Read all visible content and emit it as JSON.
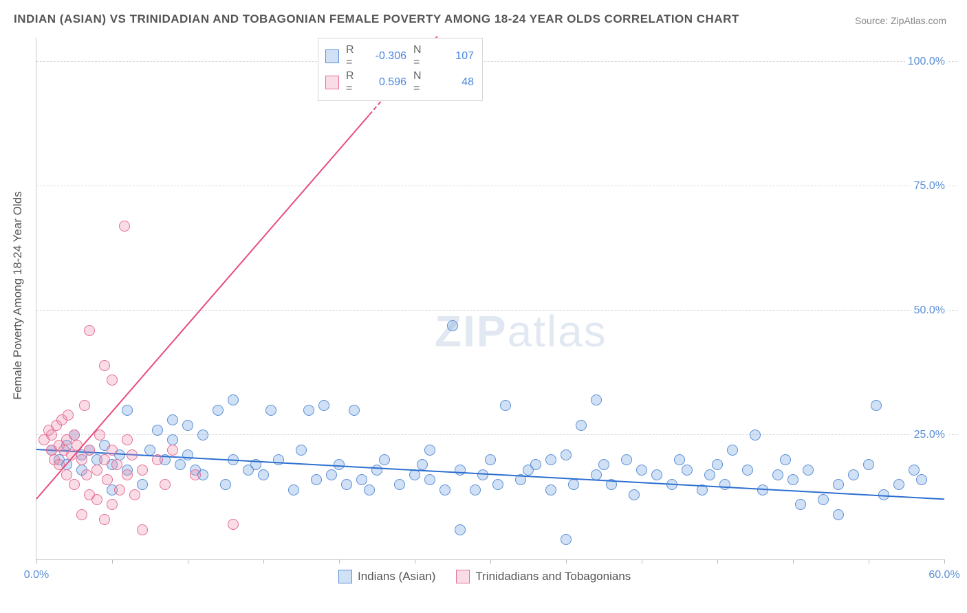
{
  "title": "INDIAN (ASIAN) VS TRINIDADIAN AND TOBAGONIAN FEMALE POVERTY AMONG 18-24 YEAR OLDS CORRELATION CHART",
  "source": "Source: ZipAtlas.com",
  "ylabel": "Female Poverty Among 18-24 Year Olds",
  "watermark_zip": "ZIP",
  "watermark_atlas": "atlas",
  "chart": {
    "type": "scatter",
    "xlim": [
      0,
      60
    ],
    "ylim": [
      0,
      105
    ],
    "xtick_positions": [
      0,
      5,
      10,
      15,
      20,
      25,
      30,
      35,
      40,
      45,
      50,
      55,
      60
    ],
    "xtick_labels": {
      "0": "0.0%",
      "60": "60.0%"
    },
    "ytick_positions": [
      25,
      50,
      75,
      100
    ],
    "ytick_labels": [
      "25.0%",
      "50.0%",
      "75.0%",
      "100.0%"
    ],
    "grid_color": "#d9d9d9",
    "background_color": "#ffffff",
    "series": [
      {
        "name": "Indians (Asian)",
        "fill": "rgba(120,165,225,0.35)",
        "stroke": "#5b8fd6",
        "marker_r": 8,
        "trend": {
          "x1": 0,
          "y1": 22,
          "x2": 60,
          "y2": 12,
          "color": "#2d6fd0",
          "width": 2.2
        },
        "R": "-0.306",
        "N": "107",
        "points": [
          [
            1,
            22
          ],
          [
            1.5,
            20
          ],
          [
            2,
            23
          ],
          [
            2,
            19
          ],
          [
            2.5,
            25
          ],
          [
            3,
            21
          ],
          [
            3,
            18
          ],
          [
            3.5,
            22
          ],
          [
            4,
            20
          ],
          [
            4.5,
            23
          ],
          [
            5,
            19
          ],
          [
            5,
            14
          ],
          [
            5.5,
            21
          ],
          [
            6,
            30
          ],
          [
            6,
            18
          ],
          [
            7,
            15
          ],
          [
            7.5,
            22
          ],
          [
            8,
            26
          ],
          [
            8.5,
            20
          ],
          [
            9,
            24
          ],
          [
            9,
            28
          ],
          [
            9.5,
            19
          ],
          [
            10,
            21
          ],
          [
            10,
            27
          ],
          [
            10.5,
            18
          ],
          [
            11,
            25
          ],
          [
            11,
            17
          ],
          [
            12,
            30
          ],
          [
            12.5,
            15
          ],
          [
            13,
            20
          ],
          [
            13,
            32
          ],
          [
            14,
            18
          ],
          [
            14.5,
            19
          ],
          [
            15,
            17
          ],
          [
            15.5,
            30
          ],
          [
            16,
            20
          ],
          [
            17,
            14
          ],
          [
            17.5,
            22
          ],
          [
            18,
            30
          ],
          [
            18.5,
            16
          ],
          [
            19,
            31
          ],
          [
            19.5,
            17
          ],
          [
            20,
            19
          ],
          [
            20.5,
            15
          ],
          [
            21,
            30
          ],
          [
            21.5,
            16
          ],
          [
            22,
            14
          ],
          [
            22.5,
            18
          ],
          [
            23,
            20
          ],
          [
            24,
            15
          ],
          [
            25,
            17
          ],
          [
            25.5,
            19
          ],
          [
            26,
            16
          ],
          [
            26,
            22
          ],
          [
            27,
            14
          ],
          [
            27.5,
            47
          ],
          [
            28,
            6
          ],
          [
            28,
            18
          ],
          [
            29,
            14
          ],
          [
            29.5,
            17
          ],
          [
            30,
            20
          ],
          [
            30.5,
            15
          ],
          [
            31,
            31
          ],
          [
            32,
            16
          ],
          [
            32.5,
            18
          ],
          [
            33,
            19
          ],
          [
            34,
            14
          ],
          [
            34,
            20
          ],
          [
            35,
            4
          ],
          [
            35,
            21
          ],
          [
            35.5,
            15
          ],
          [
            36,
            27
          ],
          [
            37,
            32
          ],
          [
            37,
            17
          ],
          [
            37.5,
            19
          ],
          [
            38,
            15
          ],
          [
            39,
            20
          ],
          [
            39.5,
            13
          ],
          [
            40,
            18
          ],
          [
            41,
            17
          ],
          [
            42,
            15
          ],
          [
            42.5,
            20
          ],
          [
            43,
            18
          ],
          [
            44,
            14
          ],
          [
            44.5,
            17
          ],
          [
            45,
            19
          ],
          [
            45.5,
            15
          ],
          [
            46,
            22
          ],
          [
            47,
            18
          ],
          [
            47.5,
            25
          ],
          [
            48,
            14
          ],
          [
            49,
            17
          ],
          [
            49.5,
            20
          ],
          [
            50,
            16
          ],
          [
            50.5,
            11
          ],
          [
            51,
            18
          ],
          [
            52,
            12
          ],
          [
            53,
            15
          ],
          [
            53,
            9
          ],
          [
            54,
            17
          ],
          [
            55,
            19
          ],
          [
            55.5,
            31
          ],
          [
            56,
            13
          ],
          [
            57,
            15
          ],
          [
            58,
            18
          ],
          [
            58.5,
            16
          ]
        ]
      },
      {
        "name": "Trinidadians and Tobagonians",
        "fill": "rgba(235,140,170,0.30)",
        "stroke": "#e56f95",
        "marker_r": 8,
        "trend": {
          "x1": 0,
          "y1": 12,
          "x2": 26.5,
          "y2": 105,
          "dash_from_x": 22,
          "color": "#e84c7b",
          "width": 2
        },
        "R": "0.596",
        "N": "48",
        "points": [
          [
            0.5,
            24
          ],
          [
            0.8,
            26
          ],
          [
            1,
            22
          ],
          [
            1,
            25
          ],
          [
            1.2,
            20
          ],
          [
            1.3,
            27
          ],
          [
            1.5,
            23
          ],
          [
            1.5,
            19
          ],
          [
            1.7,
            28
          ],
          [
            1.8,
            22
          ],
          [
            2,
            24
          ],
          [
            2,
            17
          ],
          [
            2.1,
            29
          ],
          [
            2.3,
            21
          ],
          [
            2.5,
            25
          ],
          [
            2.5,
            15
          ],
          [
            2.7,
            23
          ],
          [
            3,
            20
          ],
          [
            3,
            9
          ],
          [
            3.2,
            31
          ],
          [
            3.3,
            17
          ],
          [
            3.5,
            22
          ],
          [
            3.5,
            13
          ],
          [
            3.5,
            46
          ],
          [
            4,
            18
          ],
          [
            4,
            12
          ],
          [
            4.2,
            25
          ],
          [
            4.5,
            20
          ],
          [
            4.5,
            8
          ],
          [
            4.5,
            39
          ],
          [
            4.7,
            16
          ],
          [
            5,
            36
          ],
          [
            5,
            22
          ],
          [
            5,
            11
          ],
          [
            5.3,
            19
          ],
          [
            5.5,
            14
          ],
          [
            5.8,
            67
          ],
          [
            6,
            24
          ],
          [
            6,
            17
          ],
          [
            6.3,
            21
          ],
          [
            6.5,
            13
          ],
          [
            7,
            18
          ],
          [
            7,
            6
          ],
          [
            8,
            20
          ],
          [
            8.5,
            15
          ],
          [
            9,
            22
          ],
          [
            10.5,
            17
          ],
          [
            13,
            7
          ]
        ]
      }
    ]
  },
  "stats_labels": {
    "R": "R =",
    "N": "N ="
  },
  "legend": {
    "series1": "Indians (Asian)",
    "series2": "Trinidadians and Tobagonians"
  }
}
